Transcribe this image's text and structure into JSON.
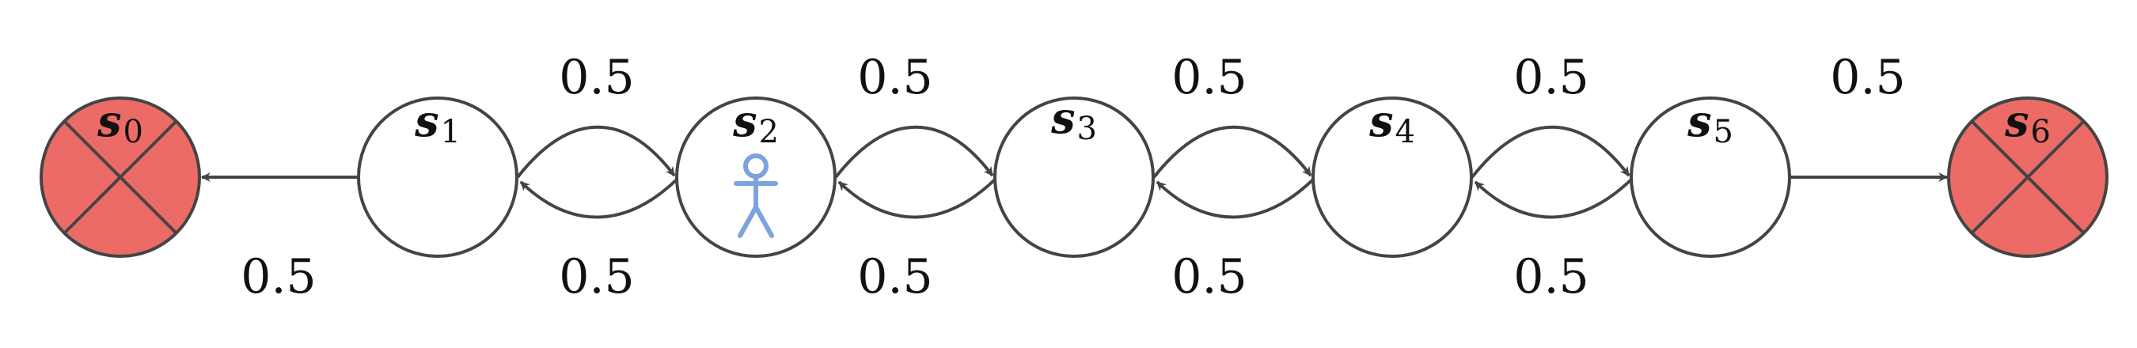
{
  "colors": {
    "terminal_fill": "#ec6b66",
    "stroke": "#444444",
    "agent": "#7ba3e0"
  },
  "agent_icon": "stick-figure-icon",
  "agent_state": "s2",
  "states": [
    {
      "id": "s0",
      "base": "s",
      "sub": "0",
      "terminal": true
    },
    {
      "id": "s1",
      "base": "s",
      "sub": "1",
      "terminal": false
    },
    {
      "id": "s2",
      "base": "s",
      "sub": "2",
      "terminal": false
    },
    {
      "id": "s3",
      "base": "s",
      "sub": "3",
      "terminal": false
    },
    {
      "id": "s4",
      "base": "s",
      "sub": "4",
      "terminal": false
    },
    {
      "id": "s5",
      "base": "s",
      "sub": "5",
      "terminal": false
    },
    {
      "id": "s6",
      "base": "s",
      "sub": "6",
      "terminal": true
    }
  ],
  "transitions": [
    {
      "from": "s1",
      "to": "s0",
      "prob": "0.5"
    },
    {
      "from": "s1",
      "to": "s2",
      "prob": "0.5"
    },
    {
      "from": "s2",
      "to": "s1",
      "prob": "0.5"
    },
    {
      "from": "s2",
      "to": "s3",
      "prob": "0.5"
    },
    {
      "from": "s3",
      "to": "s2",
      "prob": "0.5"
    },
    {
      "from": "s3",
      "to": "s4",
      "prob": "0.5"
    },
    {
      "from": "s4",
      "to": "s3",
      "prob": "0.5"
    },
    {
      "from": "s4",
      "to": "s5",
      "prob": "0.5"
    },
    {
      "from": "s5",
      "to": "s4",
      "prob": "0.5"
    },
    {
      "from": "s5",
      "to": "s6",
      "prob": "0.5"
    }
  ]
}
